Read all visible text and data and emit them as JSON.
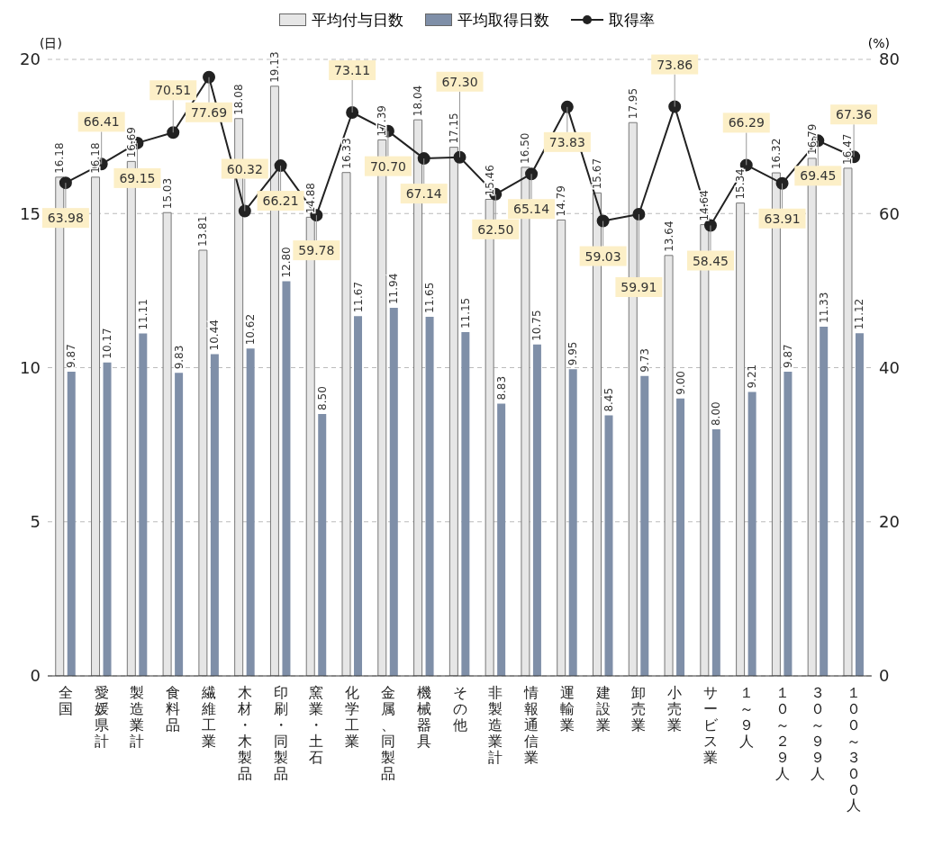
{
  "chart_data": {
    "type": "bar",
    "categories": [
      "全国",
      "愛媛県計",
      "製造業計",
      "食料品",
      "繊維工業",
      "木材・木製品",
      "印刷・同製品",
      "窯業・土石",
      "化学工業",
      "金属、同製品",
      "機械器具",
      "その他",
      "非製造業計",
      "情報通信業",
      "運輸業",
      "建設業",
      "卸売業",
      "小売業",
      "サービス業",
      "１～９人",
      "１０～２９人",
      "３０～９９人",
      "１００～３００人"
    ],
    "series": [
      {
        "name": "平均付与日数",
        "color": "#e6e6e6",
        "values": [
          16.18,
          16.18,
          16.69,
          15.03,
          13.81,
          18.08,
          19.13,
          14.88,
          16.33,
          17.39,
          18.04,
          17.15,
          15.46,
          16.5,
          14.79,
          15.67,
          17.95,
          13.64,
          14.64,
          15.34,
          16.32,
          16.79,
          16.47
        ],
        "value_labels": [
          "16.18",
          "16.18",
          "16.69",
          "15.03",
          "13.81",
          "18.08",
          "19.13",
          "14.88",
          "16.33",
          "17.39",
          "18.04",
          "17.15",
          "15.46",
          "16.50",
          "14.79",
          "15.67",
          "17.95",
          "13.64",
          "14.64",
          "15.34",
          "16.32",
          "16.79",
          "16.47"
        ]
      },
      {
        "name": "平均取得日数",
        "color": "#7f8fa8",
        "values": [
          9.87,
          10.17,
          11.11,
          9.83,
          10.44,
          10.62,
          12.8,
          8.5,
          11.67,
          11.94,
          11.65,
          11.15,
          8.83,
          10.75,
          9.95,
          8.45,
          9.73,
          9.0,
          8.0,
          9.21,
          9.87,
          11.33,
          11.12
        ],
        "value_labels": [
          "9.87",
          "10.17",
          "11.11",
          "9.83",
          "10.44",
          "10.62",
          "12.80",
          "8.50",
          "11.67",
          "11.94",
          "11.65",
          "11.15",
          "8.83",
          "10.75",
          "9.95",
          "8.45",
          "9.73",
          "9.00",
          "8.00",
          "9.21",
          "9.87",
          "11.33",
          "11.12"
        ]
      },
      {
        "name": "取得率",
        "type": "line",
        "axis": "y2",
        "color": "#222222",
        "values": [
          63.98,
          66.41,
          69.15,
          70.51,
          77.69,
          60.32,
          66.21,
          59.78,
          73.11,
          70.7,
          67.14,
          67.3,
          62.5,
          65.14,
          73.83,
          59.03,
          59.91,
          73.86,
          58.45,
          66.29,
          63.91,
          69.45,
          67.36
        ],
        "value_labels": [
          "63.98",
          "66.41",
          "69.15",
          "70.51",
          "77.69",
          "60.32",
          "66.21",
          "59.78",
          "73.11",
          "70.70",
          "67.14",
          "67.30",
          "62.50",
          "65.14",
          "73.83",
          "59.03",
          "59.91",
          "73.86",
          "58.45",
          "66.29",
          "63.91",
          "69.45",
          "67.36"
        ]
      }
    ],
    "ylabel": "(日)",
    "y2label": "(%)",
    "ylim": [
      0,
      20
    ],
    "yticks": [
      0,
      5,
      10,
      15,
      20
    ],
    "y2lim": [
      0,
      80
    ],
    "y2ticks": [
      0,
      20,
      40,
      60,
      80
    ],
    "grid": "y",
    "legend": "top",
    "marker": "circle",
    "line_style": "solid"
  }
}
